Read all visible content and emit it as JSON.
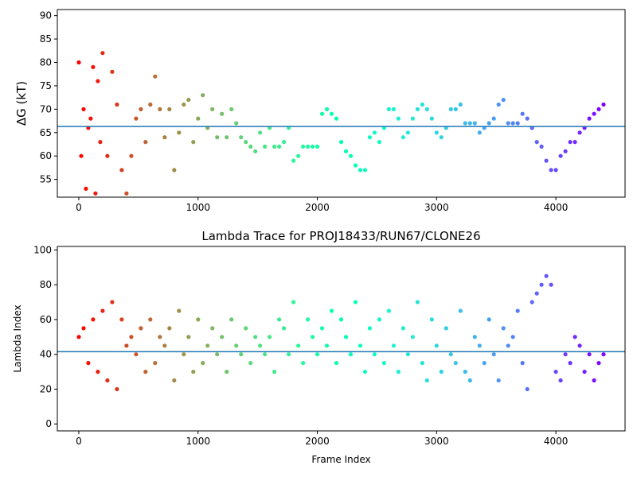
{
  "chart_data": [
    {
      "type": "scatter",
      "title": "",
      "xlabel": "",
      "ylabel": "ΔG (kT)",
      "xlim": [
        -180,
        4580
      ],
      "ylim": [
        51.2,
        91.3
      ],
      "xticks": [
        0,
        1000,
        2000,
        3000,
        4000
      ],
      "xtick_labels": [
        "0",
        "1000",
        "2000",
        "3000",
        "4000"
      ],
      "yticks": [
        55,
        60,
        65,
        70,
        75,
        80,
        85,
        90
      ],
      "ytick_labels": [
        "55",
        "60",
        "65",
        "70",
        "75",
        "80",
        "85",
        "90"
      ],
      "hline": 66.3,
      "hline_color": "#1f77b4",
      "colormap": "rainbow (red at frame 0 to violet at last frame)",
      "n_frames": 4400,
      "x": [
        0,
        20,
        40,
        60,
        80,
        100,
        120,
        140,
        160,
        180,
        200,
        240,
        280,
        320,
        360,
        400,
        440,
        480,
        520,
        560,
        600,
        640,
        680,
        720,
        760,
        800,
        840,
        880,
        920,
        960,
        1000,
        1040,
        1080,
        1120,
        1160,
        1200,
        1240,
        1280,
        1320,
        1360,
        1400,
        1440,
        1480,
        1520,
        1560,
        1600,
        1640,
        1680,
        1720,
        1760,
        1800,
        1840,
        1880,
        1920,
        1960,
        2000,
        2040,
        2080,
        2120,
        2160,
        2200,
        2240,
        2280,
        2320,
        2360,
        2400,
        2440,
        2480,
        2520,
        2560,
        2600,
        2640,
        2680,
        2720,
        2760,
        2800,
        2840,
        2880,
        2920,
        2960,
        3000,
        3040,
        3080,
        3120,
        3160,
        3200,
        3240,
        3280,
        3320,
        3360,
        3400,
        3440,
        3480,
        3520,
        3560,
        3600,
        3640,
        3680,
        3720,
        3760,
        3800,
        3840,
        3880,
        3920,
        3960,
        4000,
        4040,
        4080,
        4120,
        4160,
        4200,
        4240,
        4280,
        4320,
        4360,
        4400
      ],
      "y": [
        80,
        60,
        70,
        53,
        66,
        68,
        79,
        52,
        76,
        63,
        82,
        60,
        78,
        71,
        57,
        52,
        60,
        68,
        70,
        63,
        71,
        77,
        70,
        64,
        70,
        57,
        65,
        71,
        72,
        63,
        68,
        73,
        66,
        70,
        64,
        69,
        64,
        70,
        67,
        64,
        63,
        62,
        61,
        65,
        62,
        66,
        62,
        62,
        63,
        66,
        59,
        60,
        62,
        62,
        62,
        62,
        69,
        70,
        69,
        68,
        63,
        61,
        60,
        58,
        57,
        57,
        64,
        65,
        63,
        66,
        70,
        70,
        68,
        64,
        65,
        68,
        70,
        71,
        70,
        68,
        65,
        64,
        66,
        70,
        70,
        71,
        67,
        67,
        67,
        65,
        66,
        67,
        68,
        71,
        72,
        67,
        67,
        67,
        69,
        68,
        66,
        63,
        62,
        59,
        57,
        57,
        60,
        61,
        63,
        63,
        65,
        66,
        68,
        69,
        70,
        71
      ]
    },
    {
      "type": "scatter",
      "title": "Lambda Trace for PROJ18433/RUN67/CLONE26",
      "xlabel": "Frame Index",
      "ylabel": "Lambda Index",
      "xlim": [
        -180,
        4580
      ],
      "ylim": [
        -4,
        102
      ],
      "xticks": [
        0,
        1000,
        2000,
        3000,
        4000
      ],
      "xtick_labels": [
        "0",
        "1000",
        "2000",
        "3000",
        "4000"
      ],
      "yticks": [
        0,
        20,
        40,
        60,
        80,
        100
      ],
      "ytick_labels": [
        "0",
        "20",
        "40",
        "60",
        "80",
        "100"
      ],
      "hline": 41.5,
      "hline_color": "#1f77b4",
      "colormap": "rainbow (red at frame 0 to violet at last frame)",
      "n_frames": 4400,
      "x": [
        0,
        40,
        80,
        120,
        160,
        200,
        240,
        280,
        320,
        360,
        400,
        440,
        480,
        520,
        560,
        600,
        640,
        680,
        720,
        760,
        800,
        840,
        880,
        920,
        960,
        1000,
        1040,
        1080,
        1120,
        1160,
        1200,
        1240,
        1280,
        1320,
        1360,
        1400,
        1440,
        1480,
        1520,
        1560,
        1600,
        1640,
        1680,
        1720,
        1760,
        1800,
        1840,
        1880,
        1920,
        1960,
        2000,
        2040,
        2080,
        2120,
        2160,
        2200,
        2240,
        2280,
        2320,
        2360,
        2400,
        2440,
        2480,
        2520,
        2560,
        2600,
        2640,
        2680,
        2720,
        2760,
        2800,
        2840,
        2880,
        2920,
        2960,
        3000,
        3040,
        3080,
        3120,
        3160,
        3200,
        3240,
        3280,
        3320,
        3360,
        3400,
        3440,
        3480,
        3520,
        3560,
        3600,
        3640,
        3680,
        3720,
        3760,
        3800,
        3840,
        3880,
        3920,
        3960,
        4000,
        4040,
        4080,
        4120,
        4160,
        4200,
        4240,
        4280,
        4320,
        4360,
        4400
      ],
      "y": [
        50,
        55,
        35,
        60,
        30,
        65,
        25,
        70,
        20,
        60,
        45,
        50,
        40,
        55,
        30,
        60,
        35,
        50,
        45,
        55,
        25,
        65,
        40,
        50,
        30,
        60,
        35,
        45,
        55,
        40,
        50,
        30,
        60,
        45,
        40,
        55,
        35,
        50,
        45,
        40,
        50,
        30,
        60,
        55,
        40,
        70,
        45,
        35,
        60,
        50,
        40,
        55,
        45,
        65,
        35,
        60,
        50,
        40,
        70,
        45,
        30,
        55,
        40,
        60,
        35,
        65,
        45,
        30,
        55,
        40,
        50,
        70,
        35,
        25,
        60,
        45,
        30,
        55,
        40,
        35,
        65,
        30,
        25,
        50,
        45,
        35,
        60,
        40,
        25,
        55,
        45,
        50,
        65,
        35,
        20,
        70,
        75,
        80,
        85,
        80,
        30,
        25,
        40,
        35,
        50,
        45,
        30,
        40,
        25,
        35,
        40
      ]
    }
  ]
}
